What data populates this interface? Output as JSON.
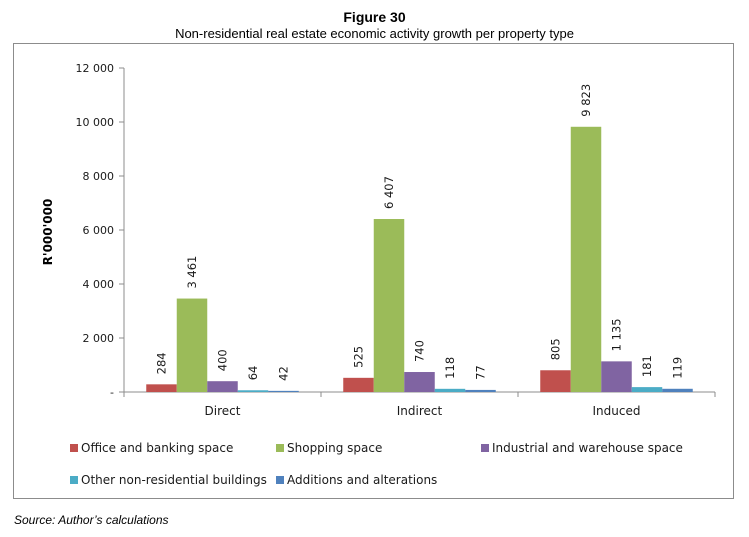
{
  "figure": {
    "number_label": "Figure 30",
    "source": "Source: Author’s calculations"
  },
  "chart_data": {
    "type": "bar",
    "title": "Non-residential real estate economic activity growth per property type",
    "xlabel": "",
    "ylabel": "R'000'000",
    "ylim": [
      0,
      12000
    ],
    "yticks": [
      0,
      2000,
      4000,
      6000,
      8000,
      10000,
      12000
    ],
    "ytick_labels": [
      "-",
      "2 000",
      "4 000",
      "6 000",
      "8 000",
      "10 000",
      "12 000"
    ],
    "grid": false,
    "legend_position": "bottom",
    "categories": [
      "Direct",
      "Indirect",
      "Induced"
    ],
    "series": [
      {
        "name": "Office and banking space",
        "color": "#c0504d",
        "values": [
          284,
          525,
          805
        ],
        "labels": [
          "284",
          "525",
          "805"
        ]
      },
      {
        "name": "Shopping space",
        "color": "#9bbb59",
        "values": [
          3461,
          6407,
          9823
        ],
        "labels": [
          "3 461",
          "6 407",
          "9 823"
        ]
      },
      {
        "name": "Industrial and warehouse space",
        "color": "#8064a2",
        "values": [
          400,
          740,
          1135
        ],
        "labels": [
          "400",
          "740",
          "1 135"
        ]
      },
      {
        "name": "Other non-residential buildings",
        "color": "#4bacc6",
        "values": [
          64,
          118,
          181
        ],
        "labels": [
          "64",
          "118",
          "181"
        ]
      },
      {
        "name": "Additions and alterations",
        "color": "#4f81bd",
        "values": [
          42,
          77,
          119
        ],
        "labels": [
          "42",
          "77",
          "119"
        ]
      }
    ]
  }
}
